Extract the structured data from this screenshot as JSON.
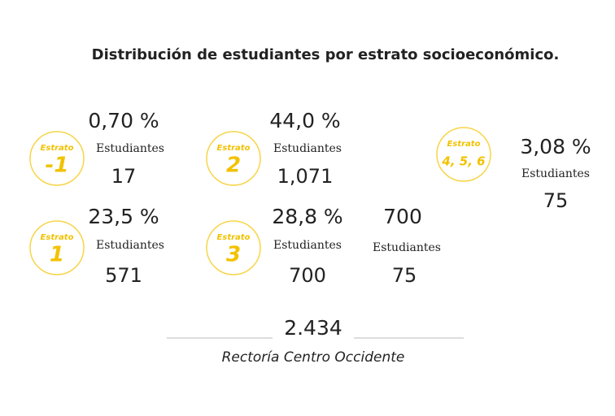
{
  "title": "Distribución de estudiantes por estrato socioeconómico.",
  "groups": [
    {
      "badge_label": "Estrato",
      "badge_value": "-1",
      "percent": "0,70 %",
      "unit": "Estudiantes",
      "count": "17"
    },
    {
      "badge_label": "Estrato",
      "badge_value": "2",
      "percent": "44,0 %",
      "unit": "Estudiantes",
      "count": "1,071"
    },
    {
      "badge_label": "Estrato",
      "badge_value": "4, 5, 6",
      "percent": "3,08 %",
      "unit": "Estudiantes",
      "count": "75"
    },
    {
      "badge_label": "Estrato",
      "badge_value": "1",
      "percent": "23,5 %",
      "unit": "Estudiantes",
      "count": "571"
    },
    {
      "badge_label": "Estrato",
      "badge_value": "3",
      "percent": "28,8 %",
      "unit": "Estudiantes",
      "count": "700"
    }
  ],
  "extra": {
    "top": "700",
    "unit": "Estudiantes",
    "count": "75"
  },
  "total": {
    "value": "2.434",
    "label": "Rectoría Centro Occidente"
  }
}
